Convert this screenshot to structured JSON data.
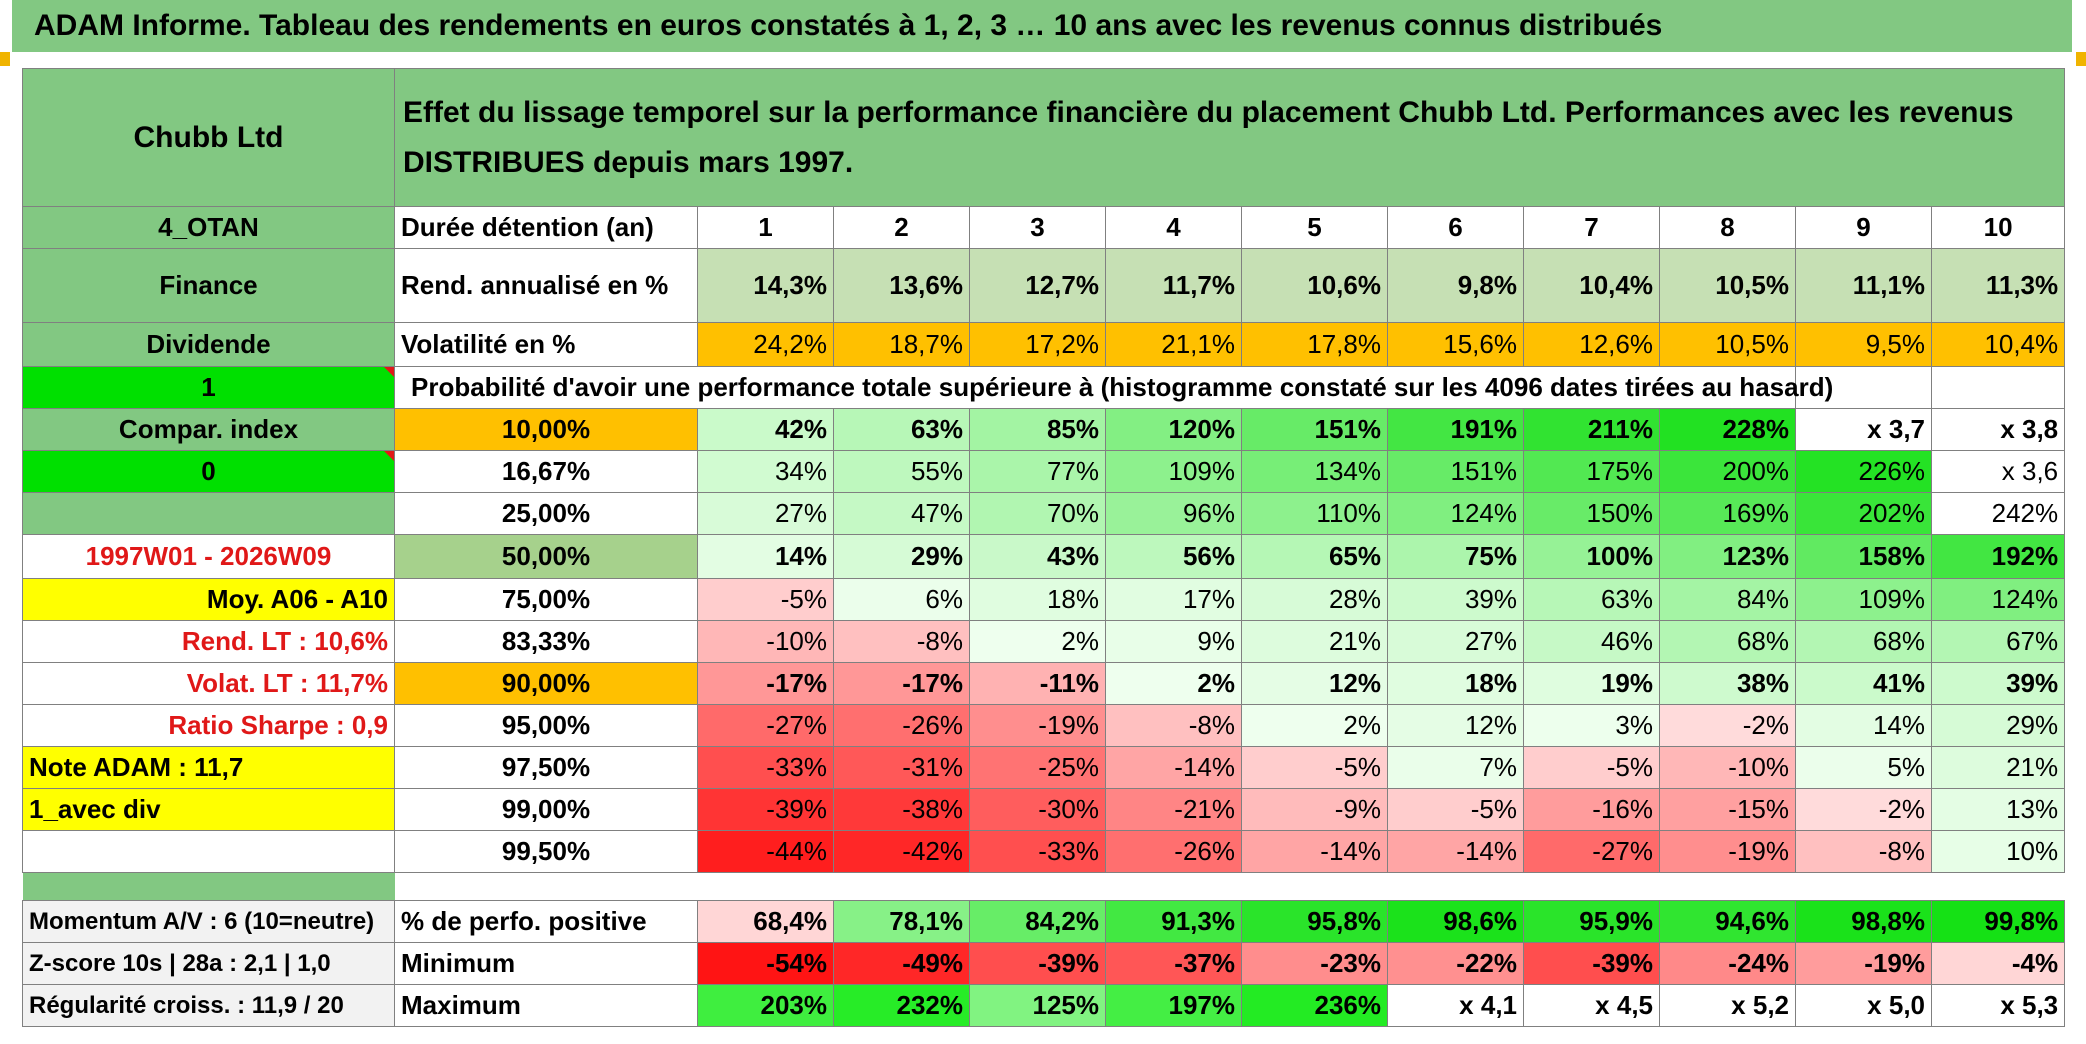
{
  "title": "ADAM Informe. Tableau des rendements en euros constatés à 1, 2, 3 … 10 ans avec les revenus connus distribués",
  "header": {
    "name": "Chubb Ltd",
    "description": "Effet du lissage temporel sur la performance financière du placement Chubb Ltd. Performances avec les revenus DISTRIBUES depuis mars 1997."
  },
  "side": {
    "code": "4_OTAN",
    "sector": "Finance",
    "type": "Dividende",
    "one": "1",
    "compar": "Compar. index",
    "zero": "0",
    "period": "1997W01 - 2026W09",
    "moy": "Moy. A06 - A10",
    "rend_lt": "Rend. LT :    10,6%",
    "volat_lt": "Volat. LT :    11,7%",
    "sharpe": "Ratio Sharpe :    0,9",
    "note": "Note ADAM : 11,7",
    "avec_div": "1_avec div",
    "momentum": "Momentum A/V : 6 (10=neutre)",
    "zscore": "Z-score 10s | 28a : 2,1 | 1,0",
    "regularite": "Régularité croiss. : 11,9 / 20"
  },
  "labels": {
    "duree": "Durée détention (an)",
    "rend": "Rend. annualisé en %",
    "volat": "Volatilité en %",
    "proba": "Probabilité d'avoir une performance totale supérieure à (histogramme constaté sur les 4096 dates tirées au hasard)",
    "pos": "% de perfo. positive",
    "min": "Minimum",
    "max": "Maximum"
  },
  "years": [
    "1",
    "2",
    "3",
    "4",
    "5",
    "6",
    "7",
    "8",
    "9",
    "10"
  ],
  "rend": [
    "14,3%",
    "13,6%",
    "12,7%",
    "11,7%",
    "10,6%",
    "9,8%",
    "10,4%",
    "10,5%",
    "11,1%",
    "11,3%"
  ],
  "volat": [
    "24,2%",
    "18,7%",
    "17,2%",
    "21,1%",
    "17,8%",
    "15,6%",
    "12,6%",
    "10,5%",
    "9,5%",
    "10,4%"
  ],
  "perc_rows": [
    {
      "pct": "10,00%",
      "vals": [
        "42%",
        "63%",
        "85%",
        "120%",
        "151%",
        "191%",
        "211%",
        "228%",
        "x 3,7",
        "x 3,8"
      ]
    },
    {
      "pct": "16,67%",
      "vals": [
        "34%",
        "55%",
        "77%",
        "109%",
        "134%",
        "151%",
        "175%",
        "200%",
        "226%",
        "x 3,6"
      ]
    },
    {
      "pct": "25,00%",
      "vals": [
        "27%",
        "47%",
        "70%",
        "96%",
        "110%",
        "124%",
        "150%",
        "169%",
        "202%",
        "242%"
      ]
    },
    {
      "pct": "50,00%",
      "vals": [
        "14%",
        "29%",
        "43%",
        "56%",
        "65%",
        "75%",
        "100%",
        "123%",
        "158%",
        "192%"
      ]
    },
    {
      "pct": "75,00%",
      "vals": [
        "-5%",
        "6%",
        "18%",
        "17%",
        "28%",
        "39%",
        "63%",
        "84%",
        "109%",
        "124%"
      ]
    },
    {
      "pct": "83,33%",
      "vals": [
        "-10%",
        "-8%",
        "2%",
        "9%",
        "21%",
        "27%",
        "46%",
        "68%",
        "68%",
        "67%"
      ]
    },
    {
      "pct": "90,00%",
      "vals": [
        "-17%",
        "-17%",
        "-11%",
        "2%",
        "12%",
        "18%",
        "19%",
        "38%",
        "41%",
        "39%"
      ]
    },
    {
      "pct": "95,00%",
      "vals": [
        "-27%",
        "-26%",
        "-19%",
        "-8%",
        "2%",
        "12%",
        "3%",
        "-2%",
        "14%",
        "29%"
      ]
    },
    {
      "pct": "97,50%",
      "vals": [
        "-33%",
        "-31%",
        "-25%",
        "-14%",
        "-5%",
        "7%",
        "-5%",
        "-10%",
        "5%",
        "21%"
      ]
    },
    {
      "pct": "99,00%",
      "vals": [
        "-39%",
        "-38%",
        "-30%",
        "-21%",
        "-9%",
        "-5%",
        "-16%",
        "-15%",
        "-2%",
        "13%"
      ]
    },
    {
      "pct": "99,50%",
      "vals": [
        "-44%",
        "-42%",
        "-33%",
        "-26%",
        "-14%",
        "-14%",
        "-27%",
        "-19%",
        "-8%",
        "10%"
      ]
    }
  ],
  "pos": [
    "68,4%",
    "78,1%",
    "84,2%",
    "91,3%",
    "95,8%",
    "98,6%",
    "95,9%",
    "94,6%",
    "98,8%",
    "99,8%"
  ],
  "min": [
    "-54%",
    "-49%",
    "-39%",
    "-37%",
    "-23%",
    "-22%",
    "-39%",
    "-24%",
    "-19%",
    "-4%"
  ],
  "max": [
    "203%",
    "232%",
    "125%",
    "197%",
    "236%",
    "x 4,1",
    "x 4,5",
    "x 5,2",
    "x 5,0",
    "x 5,3"
  ],
  "colors": {
    "header_green": "#82c882",
    "orange": "#ffc000",
    "bright_green": "#00e000",
    "yellow": "#ffff00",
    "red_text": "#e01818",
    "dark_red": "#ff0000",
    "light_green_fill": "#c6e0b4"
  }
}
